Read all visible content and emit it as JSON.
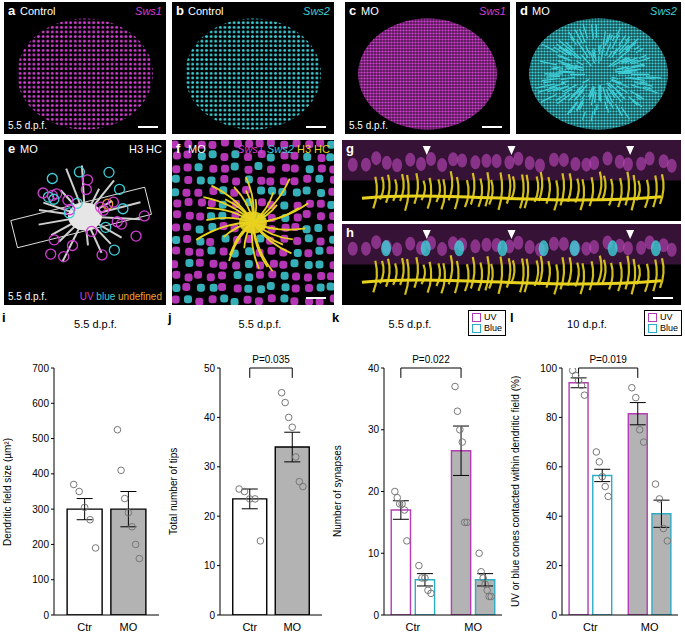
{
  "figure_panels": [
    {
      "panel": "a",
      "top_left": "Control",
      "top_right": [
        {
          "text": "Sws1",
          "color": "#d43fd4",
          "italic": true
        }
      ],
      "bottom_left": "5.5 d.p.f."
    },
    {
      "panel": "b",
      "top_left": "Control",
      "top_right": [
        {
          "text": "Sws2",
          "color": "#3fcfd8",
          "italic": true
        }
      ]
    },
    {
      "panel": "c",
      "top_left": "MO",
      "top_right": [
        {
          "text": "Sws1",
          "color": "#d43fd4",
          "italic": true
        }
      ],
      "bottom_left": "5.5 d.p.f."
    },
    {
      "panel": "d",
      "top_left": "MO",
      "top_right": [
        {
          "text": "Sws2",
          "color": "#3fcfd8",
          "italic": true
        }
      ]
    },
    {
      "panel": "e",
      "top_left": "MO",
      "top_right": [
        {
          "text": "H3 HC",
          "color": "#ffffff",
          "italic": false
        }
      ],
      "bottom_left": "5.5 d.p.f.",
      "key": [
        {
          "text": "UV",
          "color": "#d43fd4"
        },
        {
          "text": "blue",
          "color": "#3fcfd8"
        },
        {
          "text": "undefined",
          "color": "#f0a030"
        }
      ]
    },
    {
      "panel": "f",
      "top_left": "MO",
      "top_right": [
        {
          "text": "Sws1",
          "color": "#d43fd4",
          "italic": true
        },
        {
          "text": "Sws2",
          "color": "#3fcfd8",
          "italic": true
        },
        {
          "text": "H3 HC",
          "color": "#e8d21e",
          "italic": false
        }
      ]
    },
    {
      "panel": "g"
    },
    {
      "panel": "h"
    }
  ],
  "chart_data": [
    {
      "panel": "i",
      "type": "bar",
      "title": "5.5 d.p.f.",
      "y_label": "Dendritic field size (µm²)",
      "categories": [
        "Ctr",
        "MO"
      ],
      "values": [
        300,
        300
      ],
      "errors": [
        30,
        50
      ],
      "points": [
        [
          370,
          350,
          305,
          270,
          190
        ],
        [
          525,
          410,
          330,
          290,
          250,
          200,
          160
        ]
      ],
      "color": "#000000",
      "colors": [
        "#ffffff",
        "#b3b3b3"
      ],
      "ylim": [
        0,
        700
      ],
      "yticks": [
        0,
        100,
        200,
        300,
        400,
        500,
        600,
        700
      ]
    },
    {
      "panel": "j",
      "type": "bar",
      "title": "5.5 d.p.f.",
      "y_label": "Total number of tips",
      "categories": [
        "Ctr",
        "MO"
      ],
      "values": [
        23.5,
        34
      ],
      "errors": [
        2,
        3
      ],
      "points": [
        [
          25.5,
          25,
          23.5,
          23.5,
          15
        ],
        [
          45,
          43,
          40,
          38,
          32,
          27,
          26
        ]
      ],
      "color": "#000000",
      "colors": [
        "#ffffff",
        "#b3b3b3"
      ],
      "ylim": [
        0,
        50
      ],
      "yticks": [
        0,
        10,
        20,
        30,
        40,
        50
      ],
      "annotations": [
        {
          "text": "P=0.035",
          "between": [
            "Ctr",
            "MO"
          ]
        }
      ]
    },
    {
      "panel": "k",
      "type": "bar",
      "title": "5.5 d.p.f.",
      "y_label": "Number of synapses",
      "categories": [
        "Ctr",
        "MO"
      ],
      "series": [
        {
          "name": "UV",
          "color": "#b43cb4",
          "values": [
            17,
            26.6
          ],
          "errors": [
            1.5,
            4
          ],
          "points": [
            [
              20,
              19,
              18,
              18,
              17,
              12
            ],
            [
              37,
              33,
              30,
              28,
              15,
              15
            ]
          ]
        },
        {
          "name": "Blue",
          "color": "#2aaec6",
          "values": [
            5.7,
            5.7
          ],
          "errors": [
            1,
            1
          ],
          "points": [
            [
              8,
              6,
              6,
              4,
              3.5
            ],
            [
              10,
              7,
              6,
              5,
              4,
              3,
              3
            ]
          ]
        }
      ],
      "colors": [
        "#ffffff",
        "#b3b3b3"
      ],
      "ylim": [
        0,
        40
      ],
      "yticks": [
        0,
        10,
        20,
        30,
        40
      ],
      "legend": "upper right",
      "annotations": [
        {
          "text": "P=0.022",
          "series": "UV",
          "between": [
            "Ctr",
            "MO"
          ]
        }
      ]
    },
    {
      "panel": "l",
      "type": "bar",
      "title": "10 d.p.f.",
      "y_label": "UV or blue cones contacted within dendritic field (%)",
      "categories": [
        "Ctr",
        "MO"
      ],
      "series": [
        {
          "name": "UV",
          "color": "#b43cb4",
          "values": [
            94,
            81.5
          ],
          "errors": [
            2,
            4.5
          ],
          "points": [
            [
              99,
              97,
              95,
              93,
              89
            ],
            [
              92,
              88,
              75,
              70
            ]
          ]
        },
        {
          "name": "Blue",
          "color": "#2aaec6",
          "values": [
            56.5,
            41
          ],
          "errors": [
            2.5,
            5.5
          ],
          "points": [
            [
              66,
              62,
              56,
              52,
              48
            ],
            [
              53,
              47,
              35,
              30
            ]
          ]
        }
      ],
      "colors": [
        "#ffffff",
        "#b3b3b3"
      ],
      "ylim": [
        0,
        100
      ],
      "yticks": [
        0,
        20,
        40,
        60,
        80,
        100
      ],
      "legend": "upper right",
      "annotations": [
        {
          "text": "P=0.019",
          "series": "UV",
          "between": [
            "Ctr",
            "MO"
          ]
        }
      ]
    }
  ]
}
